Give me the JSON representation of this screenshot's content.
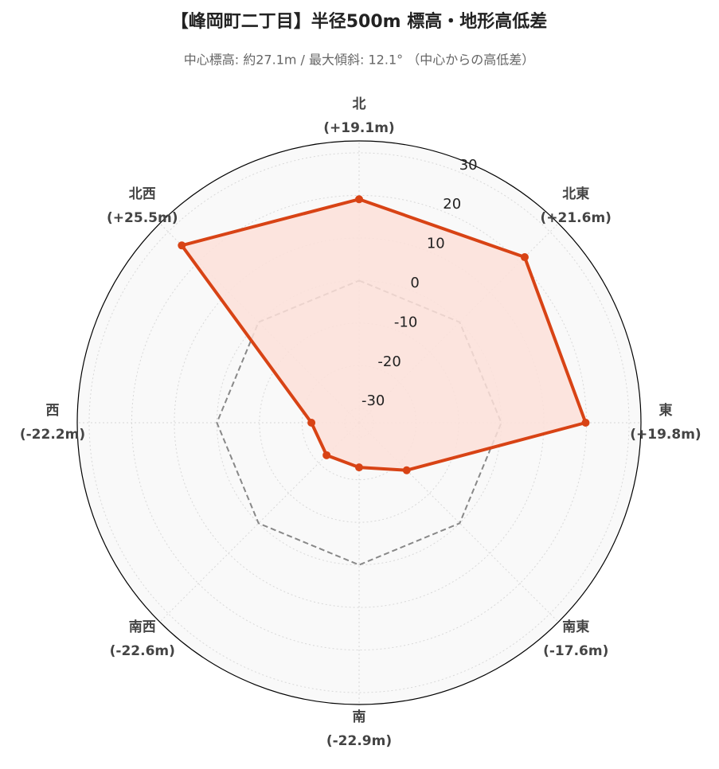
{
  "chart_data": {
    "type": "radar",
    "title": "【峰岡町二丁目】半径500m 標高・地形高低差",
    "subtitle": "中心標高: 約27.1m / 最大傾斜: 12.1° （中心からの高低差）",
    "categories": [
      "北",
      "北東",
      "東",
      "南東",
      "南",
      "南西",
      "西",
      "北西"
    ],
    "values": [
      19.1,
      21.6,
      19.8,
      -17.6,
      -22.9,
      -22.6,
      -22.2,
      25.5
    ],
    "value_labels": [
      "(+19.1m)",
      "(+21.6m)",
      "(+19.8m)",
      "(-17.6m)",
      "(-22.9m)",
      "(-22.6m)",
      "(-22.2m)",
      "(+25.5m)"
    ],
    "color": "#d84315",
    "fill_color": "#fde0d9",
    "ylim": [
      -33.4,
      32.8
    ],
    "yticks": [
      -30,
      -20,
      -10,
      0,
      10,
      20,
      30
    ],
    "grid": true,
    "reference_line": {
      "value": 0,
      "color": "#888888",
      "style": "dashed"
    }
  }
}
